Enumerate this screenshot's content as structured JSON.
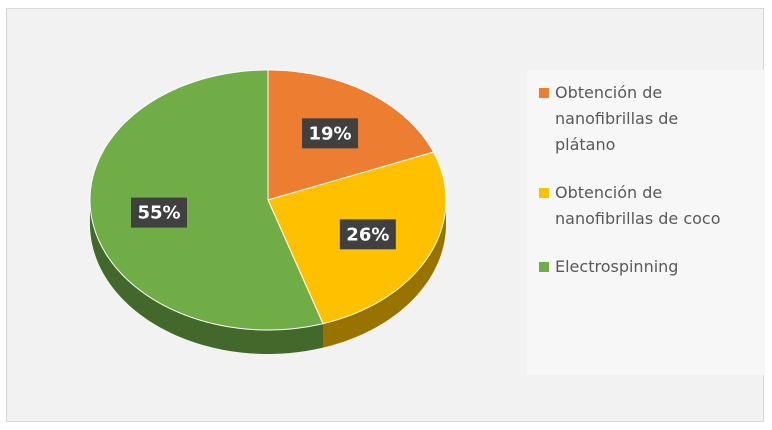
{
  "chart_data": {
    "type": "pie",
    "categories": [
      "Obtención de nanofibrillas de plátano",
      "Obtención de nanofibrillas de coco",
      "Electrospinning"
    ],
    "values": [
      19,
      26,
      55
    ],
    "value_labels": [
      "19%",
      "26%",
      "55%"
    ],
    "colors": [
      "#ED7D31",
      "#FFC000",
      "#70AD47"
    ],
    "legend": "right"
  }
}
